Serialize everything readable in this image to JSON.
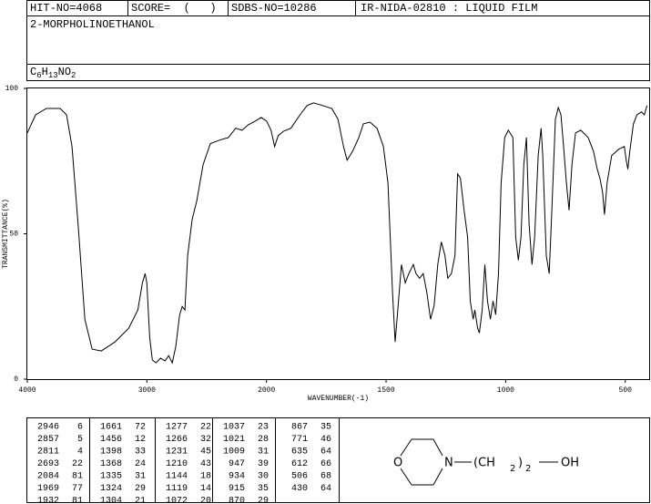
{
  "header": {
    "hit_no": "HIT-NO=4068",
    "score": "SCORE=  (   )",
    "sdbs_no": "SDBS-NO=10286",
    "method": "IR-NIDA-02810 : LIQUID FILM",
    "name": "2-MORPHOLINOETHANOL",
    "formula": [
      "C",
      "6",
      "H",
      "13",
      "NO",
      "2"
    ]
  },
  "chart_data": {
    "type": "line",
    "xlabel": "WAVENUMBER(-1)",
    "ylabel": "TRANSMITTANCE(%)",
    "color": "#000000",
    "xlim": [
      4000,
      400
    ],
    "xticks": [
      4000,
      3000,
      2000,
      1500,
      1000,
      500
    ],
    "ylim": [
      0,
      100
    ],
    "yticks": [
      0,
      50,
      100
    ],
    "x": [
      4000,
      3931,
      3840,
      3725,
      3672,
      3626,
      3573,
      3519,
      3458,
      3382,
      3267,
      3153,
      3076,
      3038,
      3015,
      3000,
      2977,
      2955,
      2924,
      2886,
      2849,
      2818,
      2788,
      2758,
      2727,
      2705,
      2682,
      2659,
      2621,
      2583,
      2530,
      2470,
      2394,
      2318,
      2258,
      2205,
      2152,
      2091,
      2045,
      2000,
      1981,
      1966,
      1951,
      1928,
      1898,
      1860,
      1830,
      1803,
      1765,
      1727,
      1701,
      1678,
      1663,
      1640,
      1614,
      1595,
      1568,
      1538,
      1511,
      1492,
      1473,
      1462,
      1451,
      1436,
      1420,
      1405,
      1386,
      1375,
      1360,
      1345,
      1330,
      1314,
      1299,
      1284,
      1269,
      1254,
      1242,
      1227,
      1212,
      1201,
      1189,
      1174,
      1159,
      1148,
      1136,
      1129,
      1117,
      1110,
      1098,
      1087,
      1076,
      1064,
      1053,
      1042,
      1030,
      1019,
      1004,
      989,
      970,
      958,
      947,
      936,
      924,
      913,
      902,
      890,
      879,
      864,
      852,
      845,
      830,
      818,
      807,
      792,
      780,
      769,
      758,
      746,
      735,
      723,
      708,
      686,
      655,
      633,
      617,
      606,
      595,
      587,
      576,
      557,
      527,
      504,
      496,
      489,
      481,
      466,
      451,
      432,
      420,
      409
    ],
    "values": [
      84.7,
      90.9,
      93.1,
      93.1,
      90.9,
      80,
      51.9,
      20.6,
      10.3,
      9.7,
      12.8,
      17.5,
      23.8,
      33.1,
      36.3,
      33,
      14.4,
      6.6,
      5.6,
      7.2,
      6.3,
      8.1,
      5.6,
      11.3,
      22,
      25,
      23.8,
      42.5,
      55,
      61.3,
      73.8,
      81,
      82.2,
      83.1,
      86.3,
      85.6,
      87.5,
      88.8,
      90,
      88.8,
      85.6,
      80,
      83.8,
      85.3,
      86.3,
      90.9,
      94.1,
      95,
      94.1,
      93.1,
      89.4,
      80,
      75.3,
      78.4,
      83.1,
      87.8,
      88.4,
      86.3,
      80,
      67.5,
      30,
      12.8,
      23.8,
      39.4,
      33.1,
      36.3,
      39.4,
      36.3,
      34.7,
      36.3,
      30,
      20.6,
      25.3,
      39.4,
      47.2,
      42.5,
      34.7,
      36.3,
      42.5,
      70.6,
      69.1,
      58.1,
      48.8,
      26.9,
      20.6,
      23.8,
      17.5,
      15.9,
      23.8,
      39.4,
      26.9,
      20.6,
      26.9,
      22.2,
      36.3,
      67.5,
      83.1,
      85.6,
      83.1,
      48.8,
      40.9,
      48.8,
      73.8,
      83.1,
      53.4,
      39.4,
      48.8,
      76.9,
      86.3,
      76.9,
      42.5,
      36.3,
      58.1,
      89.4,
      93.4,
      90.9,
      80,
      67.5,
      58.1,
      73.8,
      84.7,
      85.6,
      83.1,
      78.4,
      72.2,
      69.1,
      64.4,
      56.6,
      67.5,
      76.9,
      79.1,
      80,
      75.3,
      72.2,
      78.4,
      87.8,
      90.9,
      91.9,
      90.9,
      94.1
    ]
  },
  "peak_table": [
    [
      [
        2946,
        6
      ],
      [
        2857,
        5
      ],
      [
        2811,
        4
      ],
      [
        2693,
        22
      ],
      [
        2084,
        81
      ],
      [
        1969,
        77
      ],
      [
        1932,
        81
      ]
    ],
    [
      [
        1661,
        72
      ],
      [
        1456,
        12
      ],
      [
        1398,
        33
      ],
      [
        1368,
        24
      ],
      [
        1335,
        31
      ],
      [
        1324,
        29
      ],
      [
        1304,
        21
      ]
    ],
    [
      [
        1277,
        22
      ],
      [
        1266,
        32
      ],
      [
        1231,
        45
      ],
      [
        1210,
        43
      ],
      [
        1144,
        18
      ],
      [
        1119,
        14
      ],
      [
        1072,
        20
      ]
    ],
    [
      [
        1037,
        23
      ],
      [
        1021,
        28
      ],
      [
        1009,
        31
      ],
      [
        947,
        39
      ],
      [
        934,
        30
      ],
      [
        915,
        35
      ],
      [
        870,
        29
      ]
    ],
    [
      [
        867,
        35
      ],
      [
        771,
        46
      ],
      [
        635,
        64
      ],
      [
        612,
        66
      ],
      [
        506,
        68
      ],
      [
        430,
        64
      ]
    ]
  ],
  "structure": {
    "o": "O",
    "n": "N",
    "group": "(CH",
    "sub1": "2",
    "close": ")",
    "sub2": "2",
    "oh": "OH"
  }
}
